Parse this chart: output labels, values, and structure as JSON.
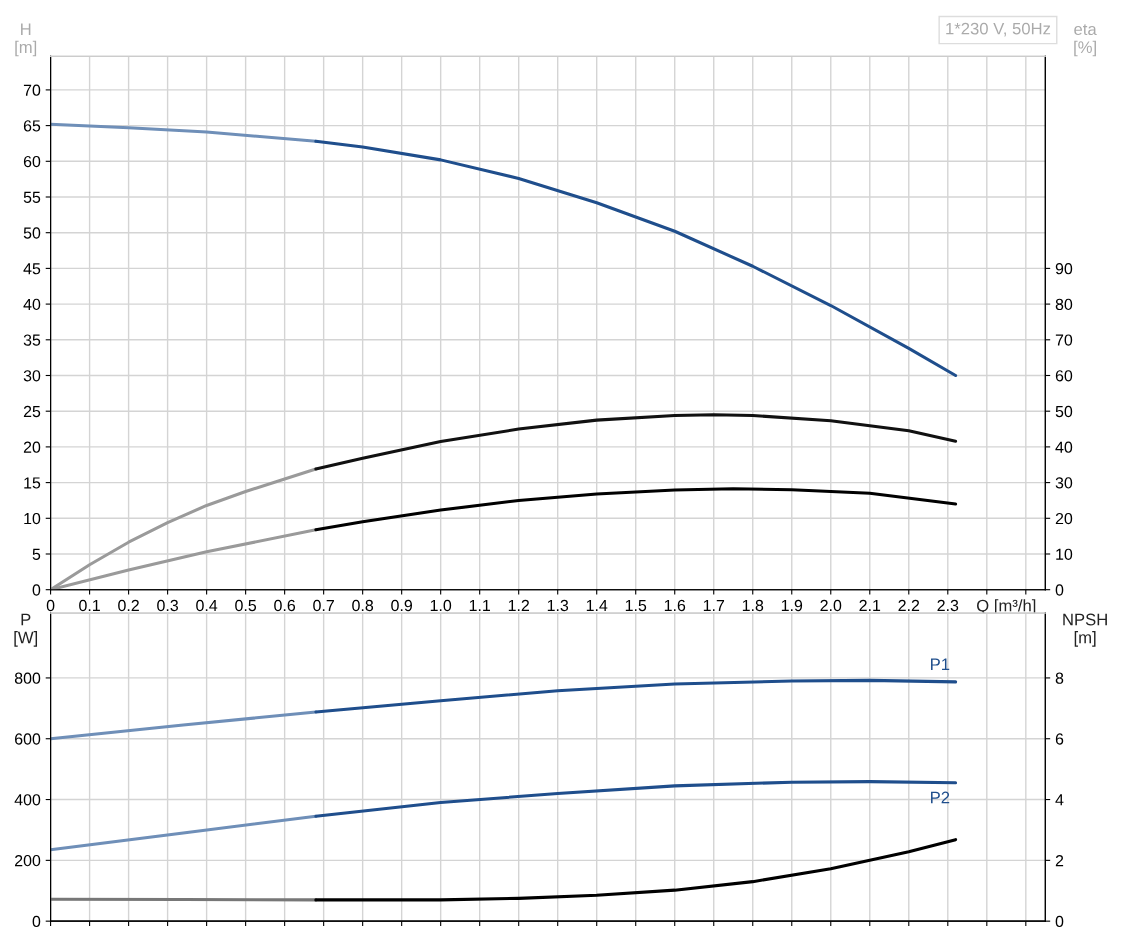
{
  "chart_data": [
    {
      "type": "line",
      "xlabel": "Q [m³/h]",
      "ylabel": "H\n[m]",
      "y2label": "eta\n[%]",
      "annotations": [
        "1*230 V, 50Hz"
      ],
      "xlim": [
        0,
        2.55
      ],
      "xticks": [
        0,
        {
          "value": 0.1,
          "label": "0.1"
        },
        {
          "value": 0.2,
          "label": "0.2"
        },
        {
          "value": 0.3,
          "label": "0.3"
        },
        {
          "value": 0.4,
          "label": "0.4"
        },
        {
          "value": 0.5,
          "label": "0.5"
        },
        {
          "value": 0.6,
          "label": "0.6"
        },
        {
          "value": 0.7,
          "label": "0.7"
        },
        {
          "value": 0.8,
          "label": "0.8"
        },
        {
          "value": 0.9,
          "label": "0.9"
        },
        {
          "value": 1.0,
          "label": "1.0"
        },
        {
          "value": 1.1,
          "label": "1.1"
        },
        {
          "value": 1.2,
          "label": "1.2"
        },
        {
          "value": 1.3,
          "label": "1.3"
        },
        {
          "value": 1.4,
          "label": "1.4"
        },
        {
          "value": 1.5,
          "label": "1.5"
        },
        {
          "value": 1.6,
          "label": "1.6"
        },
        {
          "value": 1.7,
          "label": "1.7"
        },
        {
          "value": 1.8,
          "label": "1.8"
        },
        {
          "value": 1.9,
          "label": "1.9"
        },
        {
          "value": 2.0,
          "label": "2.0"
        },
        {
          "value": 2.1,
          "label": "2.1"
        },
        {
          "value": 2.2,
          "label": "2.2"
        },
        {
          "value": 2.3,
          "label": "2.3"
        },
        {
          "value": 2.4,
          "label": null
        },
        {
          "value": 2.5,
          "label": null
        }
      ],
      "ylim": [
        0,
        74.7
      ],
      "yticks": [
        0,
        5,
        10,
        15,
        20,
        25,
        30,
        35,
        40,
        45,
        50,
        55,
        60,
        65,
        70
      ],
      "y2lim": [
        0,
        149.4
      ],
      "y2ticks": [
        0,
        10,
        20,
        30,
        40,
        50,
        60,
        70,
        80,
        90
      ],
      "grid": true,
      "marker": "none",
      "series": [
        {
          "color": "#6f8fb8",
          "x": [
            0,
            0.2,
            0.4,
            0.68
          ],
          "values": [
            65.2,
            64.7,
            64.1,
            62.8
          ]
        },
        {
          "color": "#1f4e8c",
          "x": [
            0.68,
            0.8,
            1.0,
            1.2,
            1.4,
            1.6,
            1.8,
            2.0,
            2.2,
            2.32
          ],
          "values": [
            62.8,
            62.0,
            60.2,
            57.6,
            54.2,
            50.2,
            45.3,
            39.8,
            33.8,
            30.0
          ]
        },
        {
          "color": "#9a9a9a",
          "axis": "y2",
          "x": [
            0,
            0.1,
            0.2,
            0.3,
            0.4,
            0.5,
            0.6,
            0.68
          ],
          "values": [
            0,
            7,
            13.3,
            18.8,
            23.6,
            27.5,
            31.0,
            33.8
          ]
        },
        {
          "color": "#111111",
          "axis": "y2",
          "x": [
            0.68,
            0.8,
            1.0,
            1.2,
            1.4,
            1.6,
            1.7,
            1.8,
            2.0,
            2.2,
            2.32
          ],
          "values": [
            33.8,
            36.8,
            41.5,
            45.0,
            47.5,
            48.8,
            49.0,
            48.8,
            47.3,
            44.5,
            41.6
          ]
        },
        {
          "color": "#9a9a9a",
          "axis": "y2",
          "x": [
            0,
            0.2,
            0.4,
            0.68
          ],
          "values": [
            0,
            5.5,
            10.6,
            16.8
          ]
        },
        {
          "color": "#000000",
          "axis": "y2",
          "x": [
            0.68,
            0.8,
            1.0,
            1.2,
            1.4,
            1.6,
            1.75,
            1.9,
            2.1,
            2.32
          ],
          "values": [
            16.8,
            19.0,
            22.3,
            25.0,
            26.8,
            27.9,
            28.3,
            28.0,
            27.0,
            24.0
          ]
        }
      ]
    },
    {
      "type": "line",
      "ylabel": "P\n[W]",
      "y2label": "NPSH\n[m]",
      "tick_labels": "y",
      "xlim": [
        0,
        2.55
      ],
      "xticks": [
        0,
        0.1,
        0.2,
        0.3,
        0.4,
        0.5,
        0.6,
        0.7,
        0.8,
        0.9,
        1.0,
        1.1,
        1.2,
        1.3,
        1.4,
        1.5,
        1.6,
        1.7,
        1.8,
        1.9,
        2.0,
        2.1,
        2.2,
        2.3,
        2.4,
        2.5
      ],
      "ylim": [
        0,
        1013
      ],
      "yticks": [
        0,
        200,
        400,
        600,
        800
      ],
      "y2lim": [
        0,
        10.13
      ],
      "y2ticks": [
        0,
        2,
        4,
        6,
        8
      ],
      "grid": true,
      "marker": "none",
      "series": [
        {
          "color": "#6f8fb8",
          "x": [
            0,
            0.34,
            0.68
          ],
          "values": [
            600,
            645,
            688
          ]
        },
        {
          "name": "P1",
          "color": "#1f4e8c",
          "x": [
            0.68,
            1.0,
            1.3,
            1.6,
            1.9,
            2.1,
            2.32
          ],
          "values": [
            688,
            725,
            758,
            780,
            790,
            792,
            787
          ]
        },
        {
          "color": "#6f8fb8",
          "x": [
            0,
            0.34,
            0.68
          ],
          "values": [
            235,
            290,
            345
          ]
        },
        {
          "name": "P2",
          "color": "#1f4e8c",
          "x": [
            0.68,
            1.0,
            1.3,
            1.6,
            1.9,
            2.1,
            2.32
          ],
          "values": [
            345,
            390,
            420,
            445,
            457,
            459,
            455
          ]
        },
        {
          "color": "#777777",
          "axis": "y2",
          "x": [
            0,
            0.34,
            0.68
          ],
          "values": [
            0.72,
            0.71,
            0.7
          ]
        },
        {
          "color": "#000000",
          "axis": "y2",
          "x": [
            0.68,
            1.0,
            1.2,
            1.4,
            1.6,
            1.8,
            2.0,
            2.2,
            2.32
          ],
          "values": [
            0.7,
            0.7,
            0.75,
            0.85,
            1.02,
            1.3,
            1.72,
            2.28,
            2.68
          ]
        }
      ]
    }
  ]
}
